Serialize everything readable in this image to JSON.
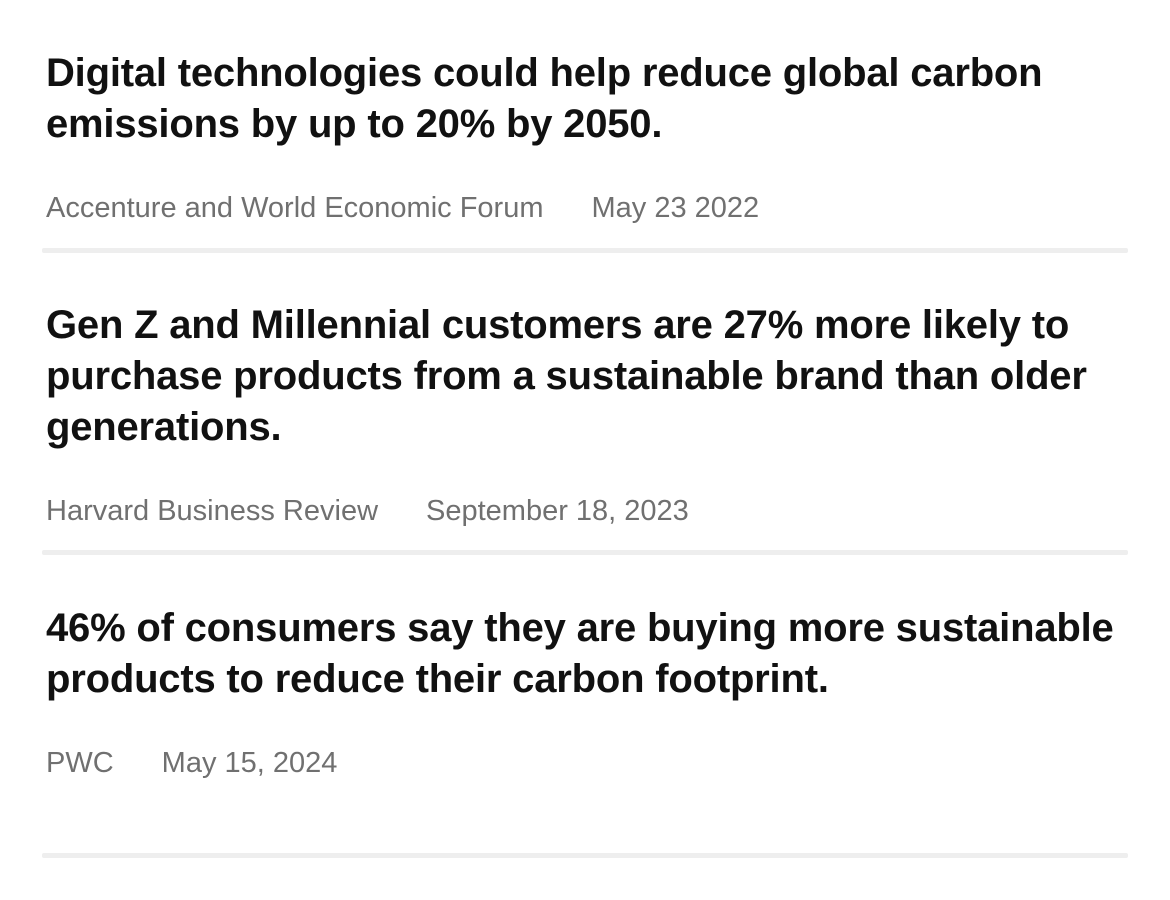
{
  "stats": [
    {
      "headline": "Digital technologies could help reduce global carbon emissions by up to 20% by 2050.",
      "source": "Accenture and World Economic Forum",
      "date": "May 23 2022"
    },
    {
      "headline": "Gen Z and Millennial customers are 27% more likely to purchase products from a sustainable brand than older generations.",
      "source": "Harvard Business Review",
      "date": "September 18, 2023"
    },
    {
      "headline": "46% of consumers say they are buying more sustainable products to reduce their carbon footprint.",
      "source": "PWC",
      "date": "May 15, 2024"
    }
  ],
  "colors": {
    "headline": "#111111",
    "meta": "#707070",
    "divider": "#eeeeee",
    "background": "#ffffff"
  }
}
